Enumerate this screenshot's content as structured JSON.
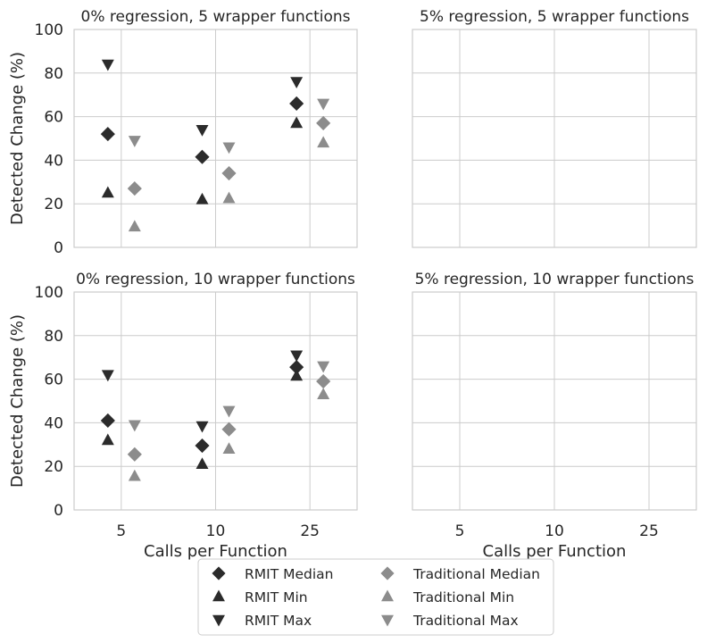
{
  "chart_data": [
    {
      "type": "scatter",
      "title": "0% regression, 5 wrapper functions",
      "ylabel": "Detected Change (%)",
      "xlabel": "",
      "ylim": [
        0,
        100
      ],
      "yticks": [
        "0",
        "20",
        "40",
        "60",
        "80",
        "100"
      ],
      "categories": [
        "5",
        "10",
        "25"
      ],
      "show_x_ticks": false,
      "show_y_ticks": true,
      "series": [
        {
          "name": "RMIT Median",
          "group": "RMIT",
          "marker": "diamond",
          "values": [
            52,
            41.5,
            66
          ]
        },
        {
          "name": "RMIT Min",
          "group": "RMIT",
          "marker": "triangle-up",
          "values": [
            25,
            22,
            57
          ]
        },
        {
          "name": "RMIT Max",
          "group": "RMIT",
          "marker": "triangle-down",
          "values": [
            84,
            54,
            76
          ]
        },
        {
          "name": "Traditional Median",
          "group": "Traditional",
          "marker": "diamond",
          "values": [
            27,
            34,
            57
          ]
        },
        {
          "name": "Traditional Min",
          "group": "Traditional",
          "marker": "triangle-up",
          "values": [
            9.5,
            22.5,
            48
          ]
        },
        {
          "name": "Traditional Max",
          "group": "Traditional",
          "marker": "triangle-down",
          "values": [
            49,
            46,
            66
          ]
        }
      ]
    },
    {
      "type": "scatter",
      "title": "5% regression, 5 wrapper functions",
      "ylabel": "",
      "xlabel": "",
      "ylim": [
        0,
        100
      ],
      "categories": [
        "5",
        "10",
        "25"
      ],
      "show_x_ticks": false,
      "show_y_ticks": false,
      "series": []
    },
    {
      "type": "scatter",
      "title": "0% regression, 10 wrapper functions",
      "ylabel": "Detected Change (%)",
      "xlabel": "Calls per Function",
      "ylim": [
        0,
        100
      ],
      "yticks": [
        "0",
        "20",
        "40",
        "60",
        "80",
        "100"
      ],
      "categories": [
        "5",
        "10",
        "25"
      ],
      "show_x_ticks": true,
      "show_y_ticks": true,
      "series": [
        {
          "name": "RMIT Median",
          "group": "RMIT",
          "marker": "diamond",
          "values": [
            41,
            29.5,
            65.5
          ]
        },
        {
          "name": "RMIT Min",
          "group": "RMIT",
          "marker": "triangle-up",
          "values": [
            32,
            21,
            61.5
          ]
        },
        {
          "name": "RMIT Max",
          "group": "RMIT",
          "marker": "triangle-down",
          "values": [
            62,
            38.5,
            71
          ]
        },
        {
          "name": "Traditional Median",
          "group": "Traditional",
          "marker": "diamond",
          "values": [
            25.5,
            37,
            59
          ]
        },
        {
          "name": "Traditional Min",
          "group": "Traditional",
          "marker": "triangle-up",
          "values": [
            15.5,
            28,
            53
          ]
        },
        {
          "name": "Traditional Max",
          "group": "Traditional",
          "marker": "triangle-down",
          "values": [
            39,
            45.5,
            66
          ]
        }
      ]
    },
    {
      "type": "scatter",
      "title": "5% regression, 10 wrapper functions",
      "ylabel": "",
      "xlabel": "Calls per Function",
      "ylim": [
        0,
        100
      ],
      "categories": [
        "5",
        "10",
        "25"
      ],
      "show_x_ticks": true,
      "show_y_ticks": false,
      "series": []
    }
  ],
  "legend": {
    "items": [
      {
        "label": "RMIT Median",
        "marker": "diamond",
        "color": "#2b2b2b"
      },
      {
        "label": "RMIT Min",
        "marker": "triangle-up",
        "color": "#2b2b2b"
      },
      {
        "label": "RMIT Max",
        "marker": "triangle-down",
        "color": "#2b2b2b"
      },
      {
        "label": "Traditional Median",
        "marker": "diamond",
        "color": "#8c8c8c"
      },
      {
        "label": "Traditional Min",
        "marker": "triangle-up",
        "color": "#8c8c8c"
      },
      {
        "label": "Traditional Max",
        "marker": "triangle-down",
        "color": "#8c8c8c"
      }
    ]
  },
  "colors": {
    "RMIT": "#2b2b2b",
    "Traditional": "#8c8c8c",
    "grid": "#cccccc",
    "text": "#262626"
  }
}
